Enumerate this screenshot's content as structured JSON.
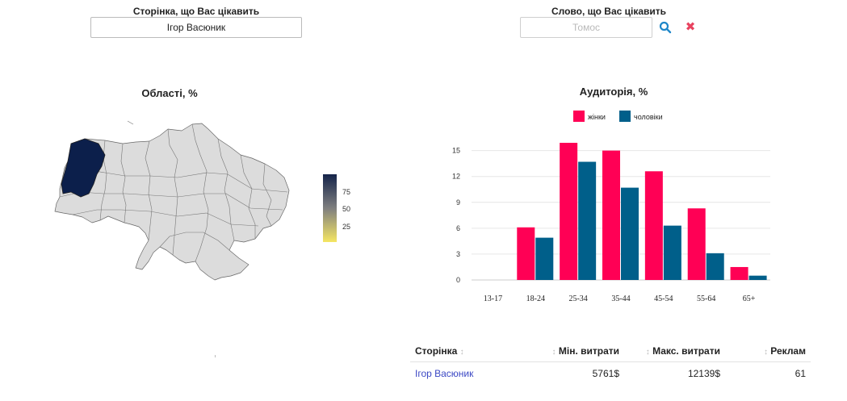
{
  "filters": {
    "page_label": "Сторінка, що Вас цікавить",
    "page_value": "Ігор Васюник",
    "word_label": "Слово, що Вас цікавить",
    "word_placeholder": "Томос",
    "search_icon": "search-icon",
    "clear_icon": "close-icon",
    "clear_glyph": "✖"
  },
  "map": {
    "title": "Області, %",
    "colorscale": [
      "#f5e663",
      "#7f7f7f",
      "#15244a"
    ],
    "region_color": "#dcdcdc",
    "highlight_color": "#0c1f4b",
    "colorbar_ticks": [
      "75",
      "50",
      "25"
    ]
  },
  "audience": {
    "title": "Аудиторія, %",
    "chart_data": {
      "type": "bar",
      "categories": [
        "13-17",
        "18-24",
        "25-34",
        "35-44",
        "45-54",
        "55-64",
        "65+"
      ],
      "series": [
        {
          "name": "жінки",
          "color": "#ff0055",
          "values": [
            0,
            6.1,
            15.9,
            15.0,
            12.6,
            8.3,
            1.5
          ]
        },
        {
          "name": "чоловіки",
          "color": "#005f8a",
          "values": [
            0,
            4.9,
            13.7,
            10.7,
            6.3,
            3.1,
            0.5
          ]
        }
      ],
      "yticks": [
        0,
        3,
        6,
        9,
        12,
        15
      ],
      "ylim": [
        0,
        15.9
      ],
      "grid": true,
      "legend": "top-center"
    }
  },
  "table": {
    "headers": [
      "Сторінка",
      "Мін. витрати",
      "Макс. витрати",
      "Реклам"
    ],
    "rows": [
      {
        "page": "Ігор Васюник",
        "min": "5761$",
        "max": "12139$",
        "ads": "61"
      }
    ],
    "sort_icon": "↕"
  }
}
